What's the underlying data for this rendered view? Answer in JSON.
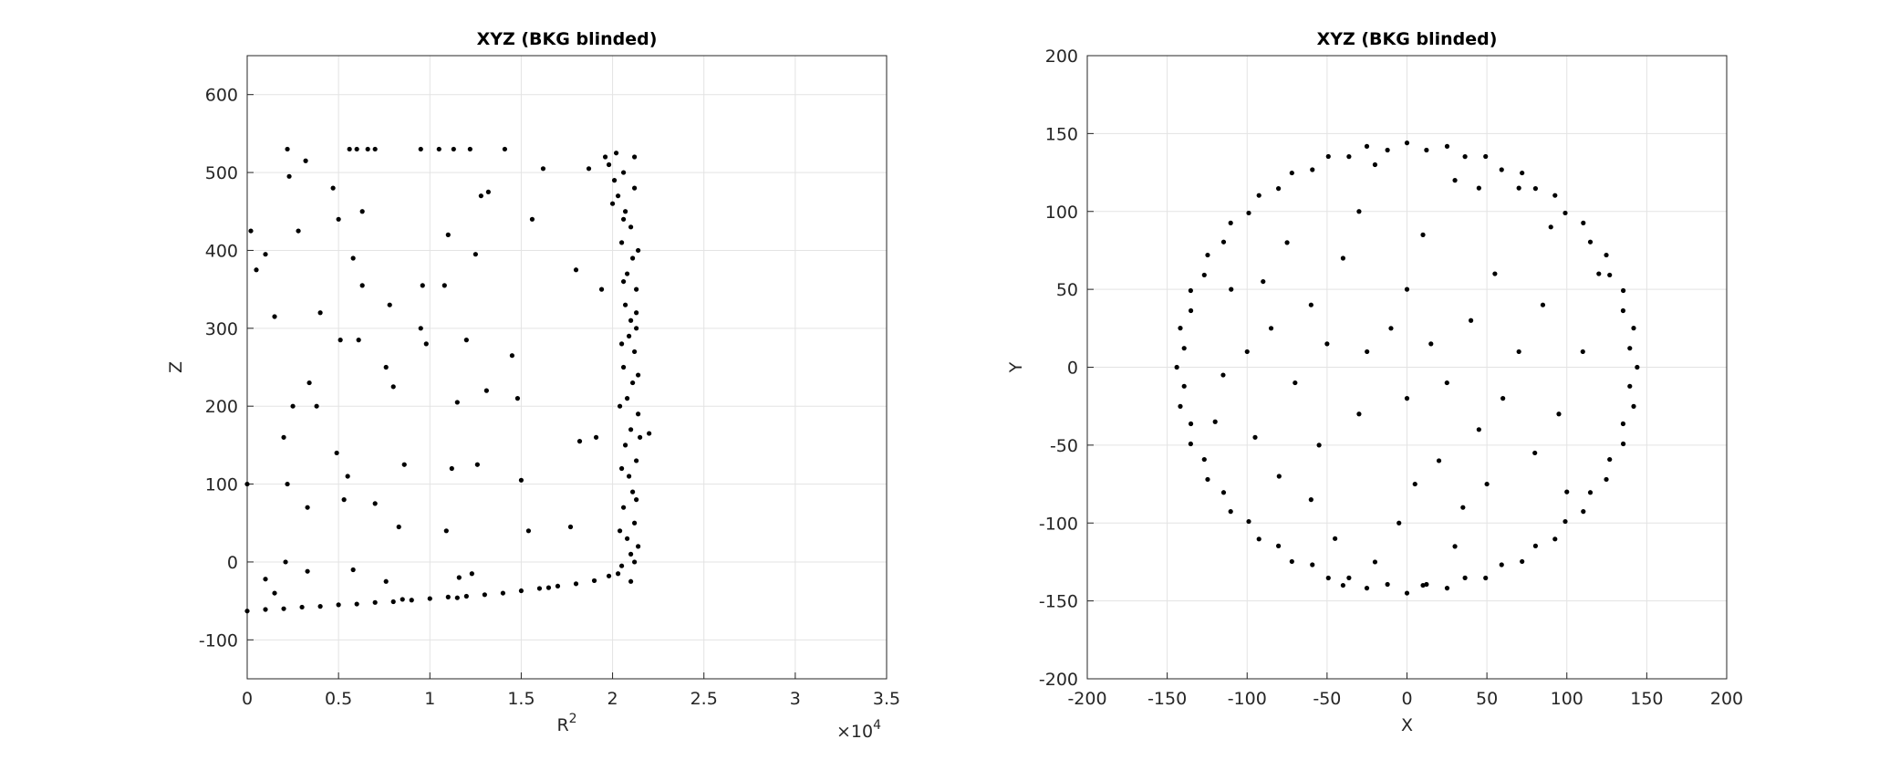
{
  "chart_data": [
    {
      "type": "scatter",
      "title": "XYZ (BKG blinded)",
      "xlabel": "R",
      "xlabel_superscript": "2",
      "ylabel": "Z",
      "x_exponent_base": "×10",
      "x_exponent": "4",
      "color": "#000000",
      "grid": true,
      "xlim": [
        0,
        35000
      ],
      "xticks": [
        0,
        {
          "value": 5000,
          "label": "0.5"
        },
        {
          "value": 10000,
          "label": "1"
        },
        {
          "value": 15000,
          "label": "1.5"
        },
        {
          "value": 20000,
          "label": "2"
        },
        {
          "value": 25000,
          "label": "2.5"
        },
        {
          "value": 30000,
          "label": "3"
        },
        {
          "value": 35000,
          "label": "3.5"
        }
      ],
      "ylim": [
        -150,
        650
      ],
      "yticks": [
        -100,
        0,
        100,
        200,
        300,
        400,
        500,
        600
      ],
      "x": [
        20500,
        21000,
        20800,
        21200,
        20600,
        21100,
        20900,
        21300,
        20700,
        21000,
        21400,
        20800,
        21100,
        20600,
        21200,
        20900,
        21000,
        20700,
        21300,
        20800,
        21100,
        20500,
        21000,
        20700,
        20300,
        20100,
        19800,
        20200,
        21200,
        20600,
        21400,
        20400,
        21300,
        20500,
        21500,
        22000,
        20400,
        21400,
        20500,
        21300,
        20600,
        21400,
        20600,
        21200,
        19600,
        20000,
        21200,
        20300,
        21000,
        21300,
        0,
        1000,
        2000,
        3000,
        4000,
        5000,
        6000,
        7000,
        8000,
        9000,
        10000,
        11000,
        12000,
        13000,
        14000,
        15000,
        16000,
        17000,
        18000,
        19000,
        19800,
        8500,
        11500,
        16500,
        200,
        500,
        1000,
        1500,
        2200,
        2300,
        3200,
        2800,
        4700,
        5000,
        5600,
        6000,
        6600,
        7000,
        6300,
        5800,
        6300,
        4000,
        5100,
        6100,
        3400,
        2500,
        3800,
        2000,
        4900,
        5300,
        5500,
        7000,
        8300,
        8600,
        9500,
        9800,
        9600,
        9500,
        10500,
        11300,
        12200,
        14100,
        12800,
        11000,
        12500,
        12000,
        11500,
        13100,
        12600,
        11200,
        10900,
        11600,
        12300,
        14500,
        14800,
        15000,
        15400,
        15600,
        17700,
        18000,
        18200,
        18700,
        19100,
        19400,
        2100,
        3300,
        5800,
        7600,
        1000,
        1500,
        0,
        2200,
        3300,
        7800,
        7600,
        8000,
        10800,
        13200,
        16200
      ],
      "values": [
        -5,
        10,
        30,
        50,
        70,
        90,
        110,
        130,
        150,
        170,
        190,
        210,
        230,
        250,
        270,
        290,
        310,
        330,
        350,
        370,
        390,
        410,
        430,
        450,
        470,
        490,
        510,
        525,
        520,
        500,
        20,
        40,
        80,
        120,
        160,
        165,
        200,
        240,
        280,
        320,
        360,
        400,
        440,
        480,
        520,
        460,
        0,
        -15,
        -25,
        300,
        -63,
        -61,
        -60,
        -58,
        -57,
        -55,
        -54,
        -52,
        -51,
        -49,
        -47,
        -45,
        -44,
        -42,
        -40,
        -37,
        -34,
        -31,
        -28,
        -24,
        -18,
        -48,
        -46,
        -33,
        425,
        375,
        395,
        315,
        530,
        495,
        515,
        425,
        480,
        440,
        530,
        530,
        530,
        530,
        450,
        390,
        355,
        320,
        285,
        285,
        230,
        200,
        200,
        160,
        140,
        80,
        110,
        75,
        45,
        125,
        300,
        280,
        355,
        530,
        530,
        530,
        530,
        530,
        470,
        420,
        395,
        285,
        205,
        220,
        125,
        120,
        40,
        -20,
        -15,
        265,
        210,
        105,
        40,
        440,
        45,
        375,
        155,
        505,
        160,
        350,
        0,
        -12,
        -10,
        -25,
        -22,
        -40,
        100,
        100,
        70,
        330,
        250,
        225,
        355,
        475,
        505
      ]
    },
    {
      "type": "scatter",
      "title": "XYZ (BKG blinded)",
      "xlabel": "X",
      "ylabel": "Y",
      "color": "#000000",
      "grid": true,
      "xlim": [
        -200,
        200
      ],
      "xticks": [
        -200,
        -150,
        -100,
        -50,
        0,
        50,
        100,
        150,
        200
      ],
      "ylim": [
        -200,
        200
      ],
      "yticks": [
        -200,
        -150,
        -100,
        -50,
        0,
        50,
        100,
        150,
        200
      ],
      "x": [
        144,
        141.8,
        135.3,
        124.7,
        110.3,
        92.6,
        72,
        49.2,
        25.1,
        0,
        -25.1,
        -49.2,
        -72,
        -92.6,
        -110.3,
        -124.7,
        -135.3,
        -141.8,
        -144,
        -141.8,
        -135.3,
        -124.7,
        -110.3,
        -92.6,
        -72,
        -49.2,
        -25.1,
        0,
        25.1,
        49.2,
        72,
        92.6,
        110.3,
        124.7,
        135.3,
        141.8,
        139.4,
        135.2,
        126.8,
        114.7,
        99,
        80.4,
        59.2,
        36.3,
        12.2,
        -12.2,
        -36.3,
        -59.2,
        -80.4,
        -99,
        -114.7,
        -126.8,
        -135.2,
        -139.4,
        -139.4,
        -135.2,
        -126.8,
        -114.7,
        -99,
        -80.4,
        -59.2,
        -36.3,
        -12.2,
        12.2,
        36.3,
        59.2,
        80.4,
        99,
        114.7,
        126.8,
        135.2,
        139.4,
        -30,
        -40,
        -90,
        -75,
        -60,
        -110,
        -100,
        -120,
        -95,
        -80,
        -60,
        -45,
        -20,
        10,
        -5,
        20,
        35,
        50,
        45,
        60,
        80,
        95,
        110,
        120,
        90,
        70,
        30,
        10,
        0,
        -10,
        -25,
        15,
        40,
        55,
        -50,
        -70,
        -30,
        0,
        25,
        70,
        100,
        -115,
        -20,
        45,
        -55,
        5,
        -85,
        85,
        30,
        -40
      ],
      "values": [
        0,
        25.1,
        49.2,
        72,
        92.6,
        110.3,
        124.7,
        135.3,
        141.8,
        144,
        141.8,
        135.3,
        124.7,
        110.3,
        92.6,
        72,
        49.2,
        25.1,
        0,
        -25.1,
        -49.2,
        -72,
        -92.6,
        -110.3,
        -124.7,
        -135.3,
        -141.8,
        -145,
        -141.8,
        -135.3,
        -124.7,
        -110.3,
        -92.6,
        -72,
        -49.2,
        -25.1,
        12.2,
        36.3,
        59.2,
        80.4,
        99,
        114.7,
        126.8,
        135.2,
        139.4,
        139.4,
        135.2,
        126.8,
        114.7,
        99,
        80.4,
        59.2,
        36.3,
        12.2,
        -12.2,
        -36.3,
        -59.2,
        -80.4,
        -99,
        -114.7,
        -126.8,
        -135.2,
        -139.4,
        -139.4,
        -135.2,
        -126.8,
        -114.7,
        -99,
        -80.4,
        -59.2,
        -36.3,
        -12.2,
        100,
        70,
        55,
        80,
        40,
        50,
        10,
        -35,
        -45,
        -70,
        -85,
        -110,
        -125,
        -140,
        -100,
        -60,
        -90,
        -75,
        -40,
        -20,
        -55,
        -30,
        10,
        60,
        90,
        115,
        120,
        85,
        50,
        25,
        10,
        15,
        30,
        60,
        15,
        -10,
        -30,
        -20,
        -10,
        10,
        -80,
        -5,
        130,
        115,
        -50,
        -75,
        25,
        40,
        -115,
        -140
      ]
    }
  ]
}
